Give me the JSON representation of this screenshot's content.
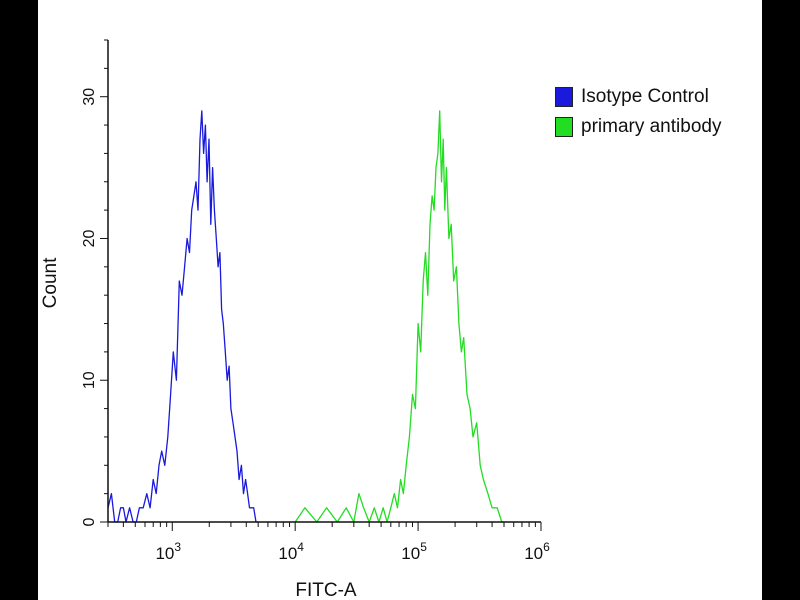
{
  "chart_data": {
    "type": "line",
    "xlabel": "FITC-A",
    "ylabel": "Count",
    "xscale": "log",
    "xlim": [
      300,
      1000000
    ],
    "ylim": [
      0,
      34
    ],
    "xticks": [
      {
        "value": 1000,
        "base": "10",
        "exp": "3"
      },
      {
        "value": 10000,
        "base": "10",
        "exp": "4"
      },
      {
        "value": 100000,
        "base": "10",
        "exp": "5"
      },
      {
        "value": 1000000,
        "base": "10",
        "exp": "6"
      }
    ],
    "yticks": [
      {
        "value": 0,
        "label": "0"
      },
      {
        "value": 10,
        "label": "10"
      },
      {
        "value": 20,
        "label": "20"
      },
      {
        "value": 30,
        "label": "30"
      }
    ],
    "legend_position": "top-right",
    "series": [
      {
        "name": "Isotype Control",
        "color": "#1a1adc",
        "x": [
          300,
          320,
          340,
          360,
          380,
          400,
          420,
          450,
          480,
          510,
          540,
          580,
          620,
          660,
          700,
          740,
          780,
          820,
          870,
          920,
          970,
          1020,
          1080,
          1140,
          1200,
          1260,
          1320,
          1380,
          1440,
          1500,
          1560,
          1620,
          1680,
          1740,
          1800,
          1860,
          1920,
          1990,
          2060,
          2130,
          2200,
          2280,
          2360,
          2440,
          2520,
          2600,
          2700,
          2800,
          2900,
          3000,
          3120,
          3240,
          3360,
          3500,
          3650,
          3800,
          3950,
          4100,
          4250,
          4400,
          4600,
          4800,
          5000
        ],
        "y": [
          1,
          2,
          0,
          0,
          1,
          1,
          0,
          1,
          0,
          0,
          1,
          1,
          2,
          1,
          3,
          2,
          4,
          5,
          4,
          6,
          9,
          12,
          10,
          17,
          16,
          18,
          20,
          19,
          22,
          23,
          24,
          22,
          27,
          29,
          26,
          28,
          24,
          27,
          21,
          25,
          22,
          20,
          18,
          19,
          15,
          14,
          12,
          10,
          11,
          8,
          7,
          6,
          5,
          3,
          4,
          2,
          3,
          2,
          1,
          1,
          1,
          0,
          0
        ]
      },
      {
        "name": "primary antibody",
        "color": "#22dd22",
        "x": [
          10000,
          12000,
          15000,
          18000,
          22000,
          26000,
          30000,
          33000,
          36000,
          40000,
          44000,
          48000,
          52000,
          56000,
          60000,
          64000,
          68000,
          72000,
          76000,
          80000,
          85000,
          90000,
          95000,
          100000,
          105000,
          110000,
          115000,
          120000,
          125000,
          130000,
          135000,
          140000,
          145000,
          150000,
          155000,
          160000,
          165000,
          170000,
          178000,
          186000,
          195000,
          205000,
          215000,
          225000,
          235000,
          250000,
          265000,
          280000,
          300000,
          320000,
          340000,
          370000,
          400000,
          440000,
          480000,
          500000
        ],
        "y": [
          0,
          1,
          0,
          1,
          0,
          1,
          0,
          2,
          1,
          0,
          1,
          0,
          1,
          0,
          1,
          2,
          1,
          3,
          2,
          4,
          6,
          9,
          8,
          14,
          12,
          17,
          19,
          16,
          21,
          23,
          22,
          25,
          26,
          29,
          24,
          27,
          22,
          25,
          20,
          21,
          17,
          18,
          14,
          12,
          13,
          9,
          8,
          6,
          7,
          4,
          3,
          2,
          1,
          1,
          0,
          0
        ]
      }
    ]
  }
}
